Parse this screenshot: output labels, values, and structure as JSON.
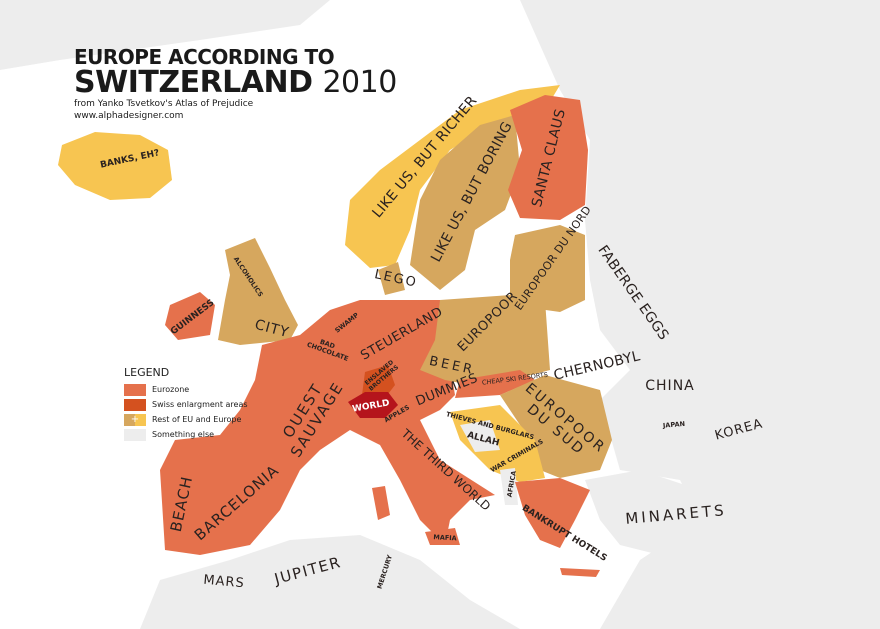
{
  "title": {
    "line1": "EUROPE ACCORDING TO",
    "line2": "SWITZERLAND",
    "year": "2010",
    "source": "from Yanko Tsvetkov's Atlas of Prejudice",
    "url": "www.alphadesigner.com"
  },
  "legend": {
    "heading": "LEGEND",
    "items": [
      {
        "label": "Eurozone",
        "color": "#E5714C",
        "icon": ""
      },
      {
        "label": "Swiss enlargment areas",
        "color": "#D4511F",
        "icon": ""
      },
      {
        "label": "Rest of EU and Europe",
        "color": "#D6A75E",
        "icon": "+"
      },
      {
        "label": "Something else",
        "color": "#EDEDED",
        "icon": ""
      }
    ]
  },
  "colors": {
    "eurozone": "#E5714C",
    "swiss": "#D4511F",
    "world": "#B5141C",
    "rest": "#D6A75E",
    "yellow": "#F7C551",
    "else": "#EDEDED",
    "sea": "#FFFFFF"
  },
  "labels": {
    "iceland": "BANKS, EH?",
    "norway": "LIKE US, BUT RICHER",
    "sweden": "LIKE US, BUT BORING",
    "finland": "SANTA CLAUS",
    "russia": "FABERGE EGGS",
    "baltics": "EUROPOOR DU NORD",
    "denmark": "LEGO",
    "scotland": "ALCOHOLICS",
    "england": "CITY",
    "ireland": "GUINNESS",
    "netherlands": "SWAMP",
    "belgium": "BAD CHOCOLATE",
    "germany": "STEUERLAND",
    "poland": "EUROPOOR",
    "czech": "BEER",
    "ukraine": "CHERNOBYL",
    "china": "CHINA",
    "japan": "JAPAN",
    "korea": "KOREA",
    "slovakia": "CHEAP SKI RESORTS",
    "austria": "DUMMIES",
    "liechtenstein": "ENSLAVED BROTHERS",
    "switzerland": "WORLD",
    "france": "OUEST SAUVAGE",
    "savoy": "APPLES",
    "italy": "THE THIRD WORLD",
    "southeast": "EUROPOOR DU SUD",
    "croatia": "THIEVES AND BURGLARS",
    "bosnia": "ALLAH",
    "serbia": "WAR CRIMINALS",
    "albania": "AFRICA",
    "greece": "BANKRUPT HOTELS",
    "turkey": "MINARETS",
    "portugal": "BEACH",
    "spain": "BARCELONIA",
    "sicily": "MAFIA",
    "morocco": "MARS",
    "algeria": "JUPITER",
    "tunisia": "MERCURY"
  }
}
